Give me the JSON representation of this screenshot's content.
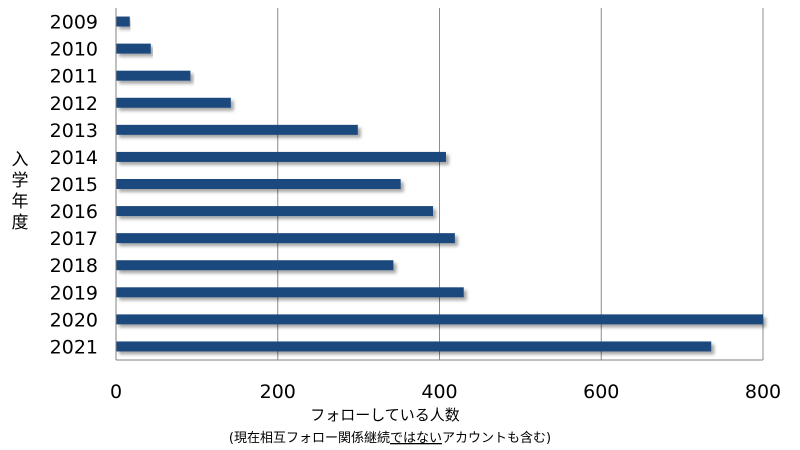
{
  "chart_data": {
    "type": "bar",
    "orientation": "horizontal",
    "title": "",
    "ylabel": "入学年度",
    "xlabel": "フォローしている人数",
    "xlabel_note_before": "(現在相互フォロー関係継続",
    "xlabel_note_underlined": "ではない",
    "xlabel_note_after": "アカウントも含む)",
    "categories": [
      "2009",
      "2010",
      "2011",
      "2012",
      "2013",
      "2014",
      "2015",
      "2016",
      "2017",
      "2018",
      "2019",
      "2020",
      "2021"
    ],
    "values": [
      17,
      43,
      92,
      142,
      299,
      408,
      352,
      392,
      419,
      343,
      430,
      800,
      736
    ],
    "xlim": [
      0,
      800
    ],
    "xticks": [
      0,
      200,
      400,
      600,
      800
    ],
    "xtick_labels": [
      "0",
      "200",
      "400",
      "600",
      "800"
    ],
    "grid": "vertical",
    "bar_color": "#1f497d",
    "grid_color": "#8c8c8c",
    "axis_color": "#808080"
  }
}
